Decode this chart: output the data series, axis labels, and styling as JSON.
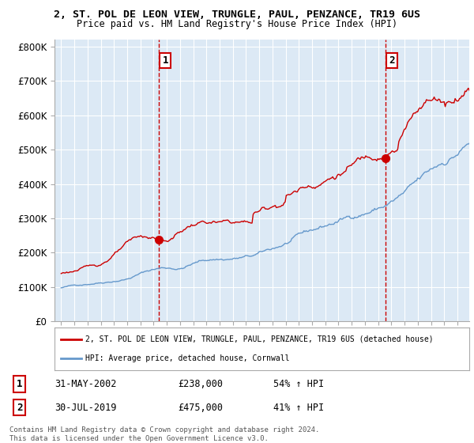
{
  "title": "2, ST. POL DE LEON VIEW, TRUNGLE, PAUL, PENZANCE, TR19 6US",
  "subtitle": "Price paid vs. HM Land Registry's House Price Index (HPI)",
  "plot_bg_color": "#dce9f5",
  "yticks": [
    0,
    100000,
    200000,
    300000,
    400000,
    500000,
    600000,
    700000,
    800000
  ],
  "ytick_labels": [
    "£0",
    "£100K",
    "£200K",
    "£300K",
    "£400K",
    "£500K",
    "£600K",
    "£700K",
    "£800K"
  ],
  "x_start_year": 1995,
  "x_end_year": 2025,
  "red_line_color": "#cc0000",
  "blue_line_color": "#6699cc",
  "dashed_vline_color": "#cc0000",
  "sale1_year": 2002.42,
  "sale1_price": 238000,
  "sale1_label": "1",
  "sale1_date": "31-MAY-2002",
  "sale1_hpi_pct": "54%",
  "sale2_year": 2019.58,
  "sale2_price": 475000,
  "sale2_label": "2",
  "sale2_date": "30-JUL-2019",
  "sale2_hpi_pct": "41%",
  "legend_line1": "2, ST. POL DE LEON VIEW, TRUNGLE, PAUL, PENZANCE, TR19 6US (detached house)",
  "legend_line2": "HPI: Average price, detached house, Cornwall",
  "footer1": "Contains HM Land Registry data © Crown copyright and database right 2024.",
  "footer2": "This data is licensed under the Open Government Licence v3.0."
}
